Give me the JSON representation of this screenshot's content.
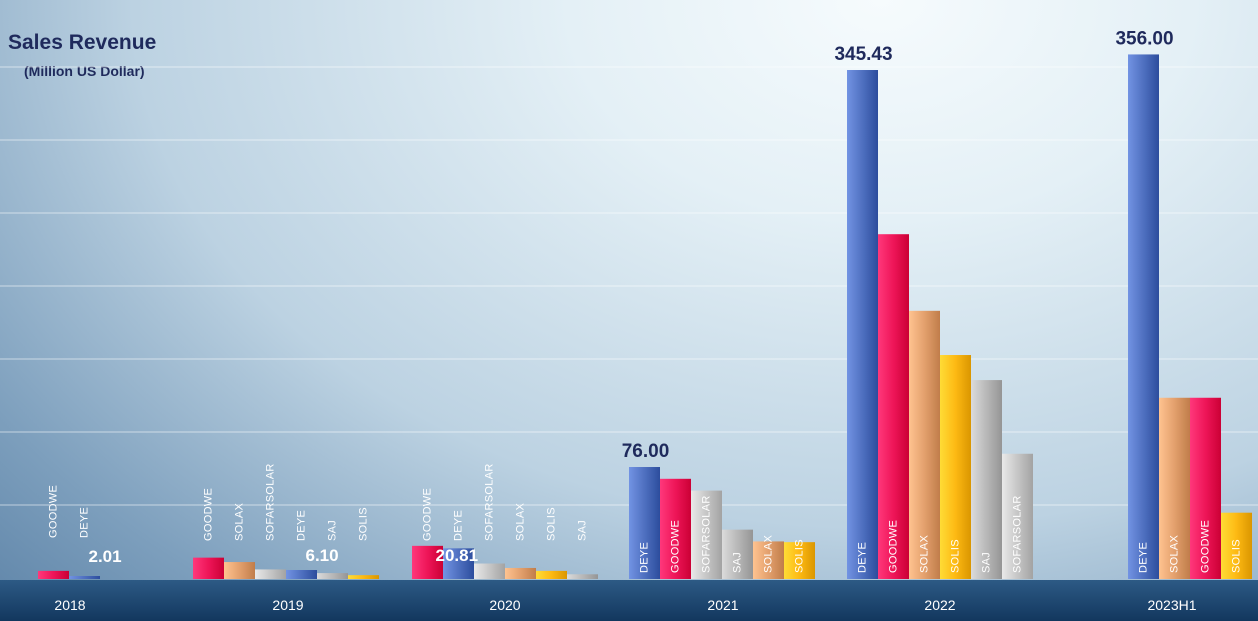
{
  "chart_data": {
    "type": "bar",
    "title": "Sales Revenue",
    "ylabel": "(Million US Dollar)",
    "ylim": [
      0,
      350
    ],
    "grid": true,
    "legend": "none",
    "groups": [
      {
        "year": "2018",
        "bars": [
          {
            "label": "GOODWE",
            "value": 5.5
          },
          {
            "label": "DEYE",
            "value": 2.01,
            "value_label": "2.01"
          }
        ]
      },
      {
        "year": "2019",
        "bars": [
          {
            "label": "GOODWE",
            "value": 14.5
          },
          {
            "label": "SOLAX",
            "value": 11.5
          },
          {
            "label": "SOFARSOLAR",
            "value": 6.5
          },
          {
            "label": "DEYE",
            "value": 6.1,
            "value_label": "6.10"
          },
          {
            "label": "SAJ",
            "value": 4.0
          },
          {
            "label": "SOLIS",
            "value": 2.6
          }
        ]
      },
      {
        "year": "2020",
        "bars": [
          {
            "label": "GOODWE",
            "value": 22.5
          },
          {
            "label": "DEYE",
            "value": 20.81,
            "value_label": "20.81"
          },
          {
            "label": "SOFARSOLAR",
            "value": 10.5
          },
          {
            "label": "SOLAX",
            "value": 7.5
          },
          {
            "label": "SOLIS",
            "value": 5.5
          },
          {
            "label": "SAJ",
            "value": 3.2
          }
        ]
      },
      {
        "year": "2021",
        "bars": [
          {
            "label": "DEYE",
            "value": 76.0,
            "value_label": "76.00"
          },
          {
            "label": "GOODWE",
            "value": 68
          },
          {
            "label": "SOFARSOLAR",
            "value": 60
          },
          {
            "label": "SAJ",
            "value": 33.5
          },
          {
            "label": "SOLAX",
            "value": 25.5
          },
          {
            "label": "SOLIS",
            "value": 25
          }
        ]
      },
      {
        "year": "2022",
        "bars": [
          {
            "label": "DEYE",
            "value": 345.43,
            "value_label": "345.43"
          },
          {
            "label": "GOODWE",
            "value": 234
          },
          {
            "label": "SOLAX",
            "value": 182
          },
          {
            "label": "SOLIS",
            "value": 152
          },
          {
            "label": "SAJ",
            "value": 135
          },
          {
            "label": "SOFARSOLAR",
            "value": 85
          }
        ]
      },
      {
        "year": "2023H1",
        "bars": [
          {
            "label": "DEYE",
            "value": 356.0,
            "value_label": "356.00"
          },
          {
            "label": "SOLAX",
            "value": 123
          },
          {
            "label": "GOODWE",
            "value": 123
          },
          {
            "label": "SOLIS",
            "value": 45
          }
        ]
      }
    ]
  },
  "colors": {
    "DEYE": "#4f70c0",
    "GOODWE": "#ee1558",
    "SOLAX": "#e3a06d",
    "SOFARSOLAR": "#c6c6c6",
    "SAJ": "#b8b8b8",
    "SOLIS": "#fdb913",
    "title": "#1f2a5c"
  }
}
